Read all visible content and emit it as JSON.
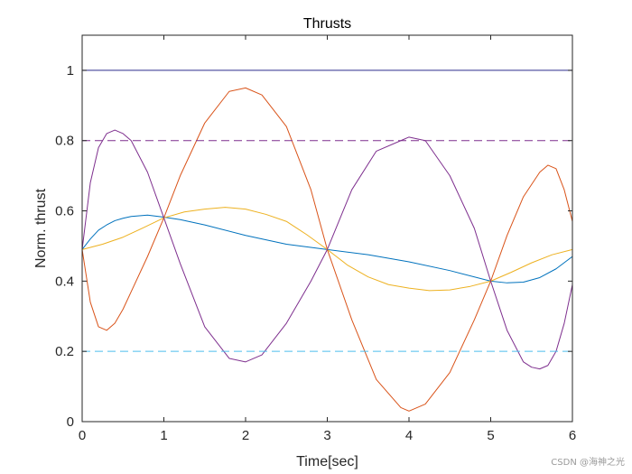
{
  "chart_data": {
    "type": "line",
    "title": "Thrusts",
    "xlabel": "Time[sec]",
    "ylabel": "Norm. thrust",
    "xlim": [
      0,
      6
    ],
    "ylim": [
      0,
      1.1
    ],
    "xticks": [
      0,
      1,
      2,
      3,
      4,
      5,
      6
    ],
    "xtick_labels": [
      "0",
      "1",
      "2",
      "3",
      "4",
      "5",
      "6"
    ],
    "yticks": [
      0,
      0.2,
      0.4,
      0.6,
      0.8,
      1
    ],
    "ytick_labels": [
      "0",
      "0.2",
      "0.4",
      "0.6",
      "0.8",
      "1"
    ],
    "grid": false,
    "legend": "none",
    "series": [
      {
        "color": "#0072bd",
        "style": "solid",
        "x": [
          0,
          0.1,
          0.2,
          0.3,
          0.4,
          0.5,
          0.6,
          0.8,
          1.0,
          1.2,
          1.5,
          2.0,
          2.5,
          3.0,
          3.5,
          4.0,
          4.5,
          5.0,
          5.2,
          5.4,
          5.6,
          5.8,
          6.0
        ],
        "y": [
          0.49,
          0.52,
          0.545,
          0.56,
          0.572,
          0.579,
          0.584,
          0.588,
          0.582,
          0.575,
          0.56,
          0.53,
          0.505,
          0.49,
          0.475,
          0.455,
          0.43,
          0.4,
          0.395,
          0.397,
          0.41,
          0.435,
          0.47
        ]
      },
      {
        "color": "#d95319",
        "style": "solid",
        "x": [
          0,
          0.1,
          0.2,
          0.3,
          0.4,
          0.5,
          0.6,
          0.8,
          1.0,
          1.2,
          1.5,
          1.8,
          2.0,
          2.2,
          2.5,
          2.8,
          3.0,
          3.3,
          3.6,
          3.9,
          4.0,
          4.2,
          4.5,
          4.8,
          5.0,
          5.2,
          5.4,
          5.6,
          5.7,
          5.8,
          5.9,
          6.0
        ],
        "y": [
          0.49,
          0.34,
          0.27,
          0.26,
          0.28,
          0.32,
          0.37,
          0.47,
          0.58,
          0.7,
          0.85,
          0.94,
          0.95,
          0.93,
          0.84,
          0.66,
          0.49,
          0.29,
          0.12,
          0.04,
          0.03,
          0.05,
          0.14,
          0.29,
          0.4,
          0.53,
          0.64,
          0.71,
          0.73,
          0.72,
          0.66,
          0.57
        ]
      },
      {
        "color": "#edb120",
        "style": "solid",
        "x": [
          0,
          0.25,
          0.5,
          0.75,
          1.0,
          1.25,
          1.5,
          1.75,
          2.0,
          2.25,
          2.5,
          2.75,
          3.0,
          3.25,
          3.5,
          3.75,
          4.0,
          4.25,
          4.5,
          4.75,
          5.0,
          5.25,
          5.5,
          5.75,
          6.0
        ],
        "y": [
          0.49,
          0.505,
          0.525,
          0.552,
          0.58,
          0.597,
          0.605,
          0.61,
          0.605,
          0.59,
          0.57,
          0.532,
          0.49,
          0.445,
          0.412,
          0.39,
          0.38,
          0.373,
          0.375,
          0.385,
          0.4,
          0.425,
          0.452,
          0.475,
          0.49
        ]
      },
      {
        "color": "#7e2f8e",
        "style": "solid",
        "x": [
          0,
          0.1,
          0.2,
          0.3,
          0.4,
          0.5,
          0.6,
          0.8,
          1.0,
          1.2,
          1.5,
          1.8,
          2.0,
          2.2,
          2.5,
          2.8,
          3.0,
          3.3,
          3.6,
          3.9,
          4.0,
          4.2,
          4.5,
          4.8,
          5.0,
          5.2,
          5.4,
          5.5,
          5.6,
          5.7,
          5.8,
          5.9,
          6.0
        ],
        "y": [
          0.49,
          0.68,
          0.78,
          0.82,
          0.83,
          0.82,
          0.8,
          0.71,
          0.58,
          0.45,
          0.27,
          0.18,
          0.17,
          0.19,
          0.28,
          0.4,
          0.49,
          0.66,
          0.77,
          0.8,
          0.81,
          0.8,
          0.7,
          0.55,
          0.4,
          0.26,
          0.17,
          0.155,
          0.15,
          0.16,
          0.2,
          0.28,
          0.39
        ]
      },
      {
        "color": "#2e2e8c",
        "style": "solid",
        "x": [
          0,
          6
        ],
        "y": [
          1,
          1
        ]
      },
      {
        "color": "#7e2f8e",
        "style": "dashed",
        "x": [
          0,
          6
        ],
        "y": [
          0.8,
          0.8
        ]
      },
      {
        "color": "#4dbeee",
        "style": "dashed",
        "x": [
          0,
          6
        ],
        "y": [
          0.2,
          0.2
        ]
      }
    ]
  },
  "watermark": "CSDN @海神之光"
}
